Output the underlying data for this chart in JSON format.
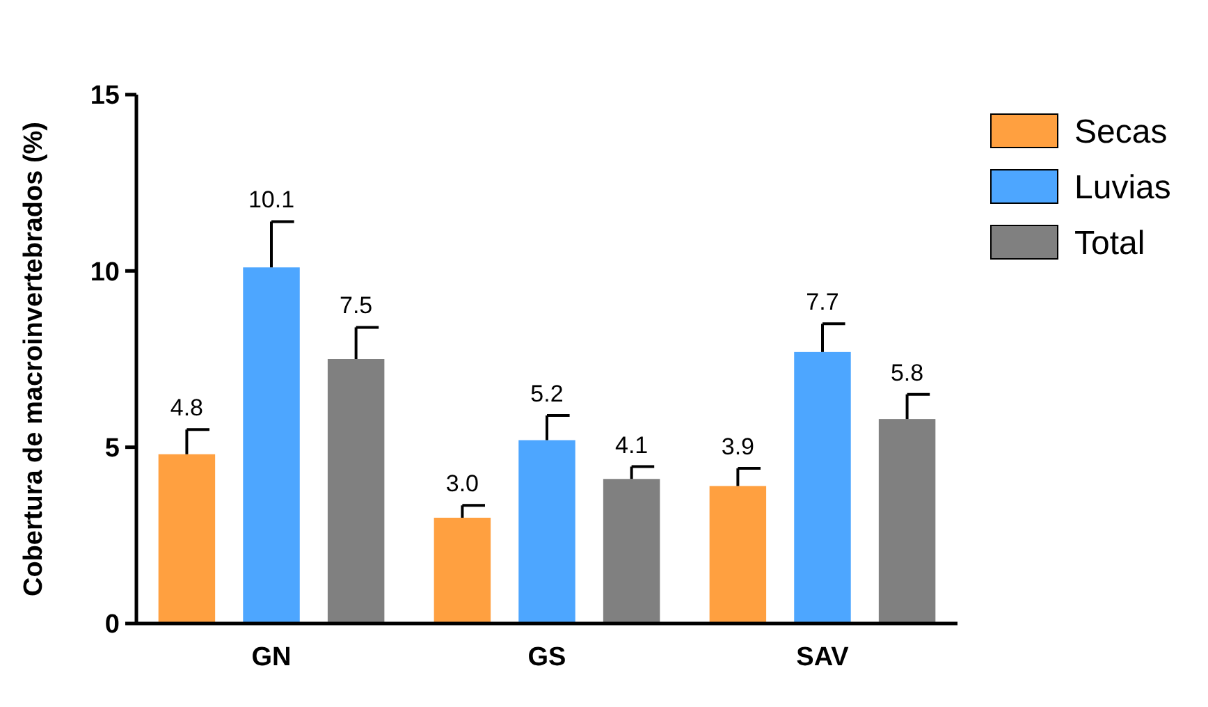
{
  "chart_data": {
    "type": "bar",
    "ylabel": "Cobertura de macroinvertebrados (%)",
    "categories": [
      "GN",
      "GS",
      "SAV"
    ],
    "series": [
      {
        "name": "Secas",
        "color": "#ffa040",
        "values": [
          4.8,
          3.0,
          3.9
        ],
        "value_labels": [
          "4.8",
          "3.0",
          "3.9"
        ],
        "errors": [
          [
            4.8,
            5.5
          ],
          [
            3.0,
            3.35
          ],
          [
            3.9,
            4.4
          ]
        ]
      },
      {
        "name": "Luvias",
        "color": "#4da6ff",
        "values": [
          10.1,
          5.2,
          7.7
        ],
        "value_labels": [
          "10.1",
          "5.2",
          "7.7"
        ],
        "errors": [
          [
            10.1,
            11.4
          ],
          [
            5.2,
            5.9
          ],
          [
            7.7,
            8.5
          ]
        ]
      },
      {
        "name": "Total",
        "color": "#808080",
        "values": [
          7.5,
          4.1,
          5.8
        ],
        "value_labels": [
          "7.5",
          "4.1",
          "5.8"
        ],
        "errors": [
          [
            7.5,
            8.4
          ],
          [
            4.1,
            4.45
          ],
          [
            5.8,
            6.5
          ]
        ]
      }
    ],
    "ylim": [
      0,
      15
    ],
    "yticks": [
      0,
      5,
      10,
      15
    ],
    "legend": "right"
  }
}
